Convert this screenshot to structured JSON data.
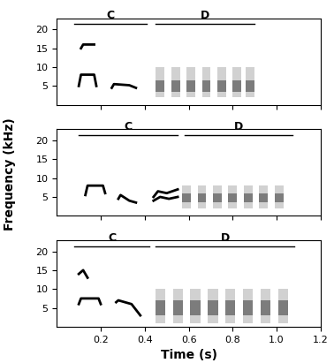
{
  "chart_data": [
    {
      "type": "spectrogram",
      "xlim": [
        0,
        1.2
      ],
      "ylim": [
        0,
        23
      ],
      "xticks": [
        0.2,
        0.4,
        0.6,
        0.8,
        1.0,
        1.2
      ],
      "yticks": [
        5,
        10,
        15,
        20
      ],
      "tick_labels": "y",
      "color": "#000000",
      "sections": [
        {
          "label": "C",
          "start": 0.08,
          "end": 0.41
        },
        {
          "label": "D",
          "start": 0.45,
          "end": 0.9
        }
      ],
      "traces": [
        {
          "time": [
            0.1,
            0.11,
            0.17,
            0.18
          ],
          "freq": [
            5,
            8,
            8,
            5
          ]
        },
        {
          "time": [
            0.11,
            0.12,
            0.17
          ],
          "freq": [
            15,
            16,
            16
          ]
        },
        {
          "time": [
            0.25,
            0.26,
            0.33,
            0.36
          ],
          "freq": [
            4.5,
            5.5,
            5.2,
            4.5
          ]
        }
      ],
      "notes": {
        "times": [
          0.47,
          0.54,
          0.61,
          0.68,
          0.75,
          0.82,
          0.88
        ],
        "duration": 0.04,
        "band": [
          2,
          10
        ],
        "core": [
          3.5,
          6.5
        ]
      }
    },
    {
      "type": "spectrogram",
      "xlim": [
        0,
        1.2
      ],
      "ylim": [
        0,
        23
      ],
      "xticks": [
        0.2,
        0.4,
        0.6,
        0.8,
        1.0,
        1.2
      ],
      "yticks": [
        5,
        10,
        15,
        20
      ],
      "tick_labels": "y",
      "color": "#000000",
      "sections": [
        {
          "label": "C",
          "start": 0.1,
          "end": 0.55
        },
        {
          "label": "D",
          "start": 0.58,
          "end": 1.07
        }
      ],
      "traces": [
        {
          "time": [
            0.13,
            0.14,
            0.21,
            0.22
          ],
          "freq": [
            5.5,
            8,
            8,
            6
          ]
        },
        {
          "time": [
            0.28,
            0.29,
            0.33,
            0.36
          ],
          "freq": [
            4.5,
            5.5,
            4,
            3.5
          ]
        },
        {
          "time": [
            0.44,
            0.46,
            0.5,
            0.55
          ],
          "freq": [
            5,
            6.5,
            6,
            7
          ]
        },
        {
          "time": [
            0.44,
            0.47,
            0.51,
            0.55
          ],
          "freq": [
            4,
            5,
            4.5,
            5
          ]
        }
      ],
      "notes": {
        "times": [
          0.59,
          0.66,
          0.73,
          0.8,
          0.87,
          0.94,
          1.01
        ],
        "duration": 0.04,
        "band": [
          2,
          8
        ],
        "core": [
          3.5,
          6
        ]
      }
    },
    {
      "type": "spectrogram",
      "xlim": [
        0,
        1.2
      ],
      "ylim": [
        0,
        23
      ],
      "xticks": [
        0.2,
        0.4,
        0.6,
        0.8,
        1.0,
        1.2
      ],
      "yticks": [
        5,
        10,
        15,
        20
      ],
      "xlabel": "Time (s)",
      "color": "#000000",
      "sections": [
        {
          "label": "C",
          "start": 0.08,
          "end": 0.42
        },
        {
          "label": "D",
          "start": 0.45,
          "end": 1.08
        }
      ],
      "traces": [
        {
          "time": [
            0.1,
            0.11,
            0.19,
            0.2
          ],
          "freq": [
            6,
            7.5,
            7.5,
            6
          ]
        },
        {
          "time": [
            0.27,
            0.28,
            0.34,
            0.38
          ],
          "freq": [
            6.5,
            7,
            6,
            3
          ]
        },
        {
          "time": [
            0.1,
            0.12,
            0.14
          ],
          "freq": [
            14,
            15,
            13
          ]
        }
      ],
      "notes": {
        "times": [
          0.47,
          0.55,
          0.63,
          0.71,
          0.79,
          0.87,
          0.95,
          1.03
        ],
        "duration": 0.045,
        "band": [
          1,
          10
        ],
        "core": [
          3,
          7
        ]
      }
    }
  ],
  "ylabel": "Frequency (kHz)"
}
